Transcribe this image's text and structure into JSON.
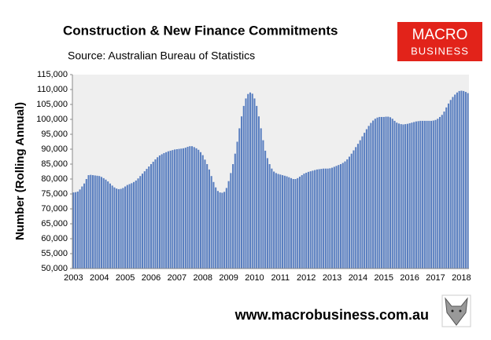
{
  "chart_data": {
    "type": "bar",
    "title": "Construction & New Finance Commitments",
    "subtitle": "Source: Australian  Bureau of Statistics",
    "y_label": "Number (Rolling Annual)",
    "color": "#5a7fc0",
    "categories": [
      "2003",
      null,
      null,
      null,
      null,
      null,
      null,
      null,
      null,
      null,
      null,
      null,
      "2004",
      null,
      null,
      null,
      null,
      null,
      null,
      null,
      null,
      null,
      null,
      null,
      "2005",
      null,
      null,
      null,
      null,
      null,
      null,
      null,
      null,
      null,
      null,
      null,
      "2006",
      null,
      null,
      null,
      null,
      null,
      null,
      null,
      null,
      null,
      null,
      null,
      "2007",
      null,
      null,
      null,
      null,
      null,
      null,
      null,
      null,
      null,
      null,
      null,
      "2008",
      null,
      null,
      null,
      null,
      null,
      null,
      null,
      null,
      null,
      null,
      null,
      "2009",
      null,
      null,
      null,
      null,
      null,
      null,
      null,
      null,
      null,
      null,
      null,
      "2010",
      null,
      null,
      null,
      null,
      null,
      null,
      null,
      null,
      null,
      null,
      null,
      "2011",
      null,
      null,
      null,
      null,
      null,
      null,
      null,
      null,
      null,
      null,
      null,
      "2012",
      null,
      null,
      null,
      null,
      null,
      null,
      null,
      null,
      null,
      null,
      null,
      "2013",
      null,
      null,
      null,
      null,
      null,
      null,
      null,
      null,
      null,
      null,
      null,
      "2014",
      null,
      null,
      null,
      null,
      null,
      null,
      null,
      null,
      null,
      null,
      null,
      "2015",
      null,
      null,
      null,
      null,
      null,
      null,
      null,
      null,
      null,
      null,
      null,
      "2016",
      null,
      null,
      null,
      null,
      null,
      null,
      null,
      null,
      null,
      null,
      null,
      "2017",
      null,
      null,
      null,
      null,
      null,
      null,
      null,
      null,
      null,
      null,
      null,
      "2018",
      null,
      null,
      null
    ],
    "values": [
      75500,
      75600,
      75800,
      76500,
      77500,
      78500,
      80000,
      81300,
      81400,
      81300,
      81200,
      81100,
      81000,
      80700,
      80300,
      79800,
      79200,
      78500,
      77800,
      77200,
      76800,
      76600,
      76700,
      77000,
      77500,
      78000,
      78300,
      78600,
      79000,
      79500,
      80200,
      81000,
      81800,
      82600,
      83400,
      84200,
      85000,
      85800,
      86600,
      87300,
      87900,
      88300,
      88700,
      89000,
      89300,
      89500,
      89700,
      89900,
      90000,
      90100,
      90200,
      90300,
      90500,
      90800,
      91000,
      91000,
      90700,
      90300,
      89800,
      89000,
      88000,
      86500,
      85000,
      83200,
      81000,
      79000,
      77200,
      76000,
      75500,
      75400,
      75700,
      77000,
      79300,
      82000,
      85000,
      88500,
      92500,
      97000,
      101000,
      104500,
      107000,
      108500,
      109000,
      108600,
      107000,
      104500,
      101000,
      97000,
      93000,
      89500,
      87000,
      85000,
      83500,
      82500,
      82000,
      81700,
      81500,
      81300,
      81100,
      80900,
      80600,
      80300,
      80000,
      80000,
      80300,
      80800,
      81300,
      81800,
      82100,
      82400,
      82600,
      82800,
      83000,
      83200,
      83300,
      83400,
      83500,
      83500,
      83500,
      83600,
      83800,
      84100,
      84400,
      84700,
      85000,
      85400,
      85900,
      86600,
      87500,
      88500,
      89600,
      90700,
      91800,
      93000,
      94300,
      95500,
      96700,
      97800,
      98800,
      99600,
      100200,
      100600,
      100800,
      100800,
      100800,
      100900,
      100900,
      100700,
      100200,
      99500,
      98900,
      98600,
      98400,
      98300,
      98400,
      98500,
      98700,
      98900,
      99100,
      99300,
      99400,
      99500,
      99500,
      99500,
      99500,
      99500,
      99500,
      99600,
      99800,
      100200,
      100800,
      101500,
      102600,
      104000,
      105300,
      106500,
      107500,
      108300,
      109000,
      109500,
      109600,
      109500,
      109200,
      108800
    ],
    "ylim": [
      50000,
      115000
    ],
    "yticks": [
      {
        "value": 50000,
        "label": "50,000"
      },
      {
        "value": 55000,
        "label": "55,000"
      },
      {
        "value": 60000,
        "label": "60,000"
      },
      {
        "value": 65000,
        "label": "65,000"
      },
      {
        "value": 70000,
        "label": "70,000"
      },
      {
        "value": 75000,
        "label": "75,000"
      },
      {
        "value": 80000,
        "label": "80,000"
      },
      {
        "value": 85000,
        "label": "85,000"
      },
      {
        "value": 90000,
        "label": "90,000"
      },
      {
        "value": 95000,
        "label": "95,000"
      },
      {
        "value": 100000,
        "label": "100,000"
      },
      {
        "value": 105000,
        "label": "105,000"
      },
      {
        "value": 110000,
        "label": "110,000"
      },
      {
        "value": 115000,
        "label": "115,000"
      }
    ]
  },
  "logo": {
    "line1": "MACRO",
    "line2": "BUSINESS"
  },
  "website": "www.macrobusiness.com.au"
}
